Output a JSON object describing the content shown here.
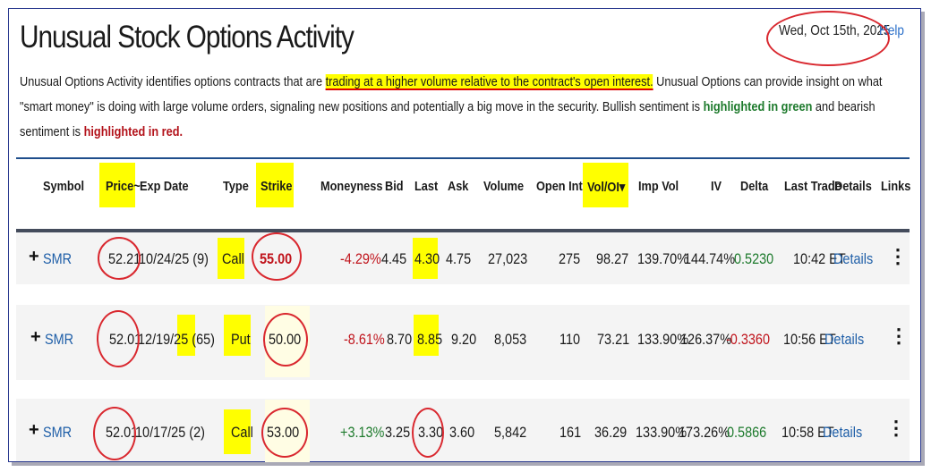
{
  "page": {
    "title": "Unusual Stock Options Activity",
    "date": "Wed, Oct 15th, 2025",
    "help_label": "Help"
  },
  "description": {
    "part1": "Unusual Options Activity identifies options contracts that are ",
    "highlight": "trading at a higher volume relative to the contract's open interest.",
    "part2": " Unusual Options can provide insight on what \"smart money\" is doing with large volume orders, signaling new positions and potentially a big move in the security. Bullish sentiment is ",
    "green_text": "highlighted in green",
    "part3": " and bearish sentiment is ",
    "red_text": "highlighted in red."
  },
  "columns": {
    "symbol": "Symbol",
    "price": "Price~",
    "exp_date": "Exp Date",
    "type": "Type",
    "strike": "Strike",
    "moneyness": "Moneyness",
    "bid": "Bid",
    "last": "Last",
    "ask": "Ask",
    "volume": "Volume",
    "open_int": "Open Int",
    "vol_oi": "Vol/OI",
    "vol_oi_sort_icon": "▾",
    "imp_vol": "Imp Vol",
    "iv": "IV",
    "delta": "Delta",
    "last_trade": "Last Trade",
    "details": "Details",
    "links": "Links"
  },
  "rows": [
    {
      "expand": "+",
      "symbol": "SMR",
      "price": "52.21",
      "exp_date": "10/24/25 (9)",
      "type": "Call",
      "strike": "55.00",
      "moneyness": "-4.29%",
      "bid": "4.45",
      "last": "4.30",
      "ask": "4.75",
      "volume": "27,023",
      "open_int": "275",
      "vol_oi": "98.27",
      "imp_vol": "139.70%",
      "iv": "144.74%",
      "delta": "0.5230",
      "last_trade": "10:42 ET",
      "details": "Details",
      "menu_icon": "⋮"
    },
    {
      "expand": "+",
      "symbol": "SMR",
      "price": "52.01",
      "exp_date_main": "12/19/25 (",
      "exp_days": "65",
      "exp_date_close": ")",
      "type": "Put",
      "strike": "50.00",
      "moneyness": "-8.61%",
      "bid": "8.70",
      "last": "8.85",
      "ask": "9.20",
      "volume": "8,053",
      "open_int": "110",
      "vol_oi": "73.21",
      "imp_vol": "133.90%",
      "iv": "126.37%",
      "delta": "-0.3360",
      "last_trade": "10:56 ET",
      "details": "Details",
      "menu_icon": "⋮"
    },
    {
      "expand": "+",
      "symbol": "SMR",
      "price": "52.01",
      "exp_date": "10/17/25 (2)",
      "type": "Call",
      "strike": "53.00",
      "moneyness": "+3.13%",
      "bid": "3.25",
      "last": "3.30",
      "ask": "3.60",
      "volume": "5,842",
      "open_int": "161",
      "vol_oi": "36.29",
      "imp_vol": "133.90%",
      "iv": "173.26%",
      "delta": "0.5866",
      "last_trade": "10:58 ET",
      "details": "Details",
      "menu_icon": "⋮"
    }
  ],
  "colors": {
    "highlight": "#ffff00",
    "annotation": "#d9282f",
    "bullish": "#1d7a2c",
    "bearish": "#c0141c",
    "link": "#1f5fa8"
  }
}
